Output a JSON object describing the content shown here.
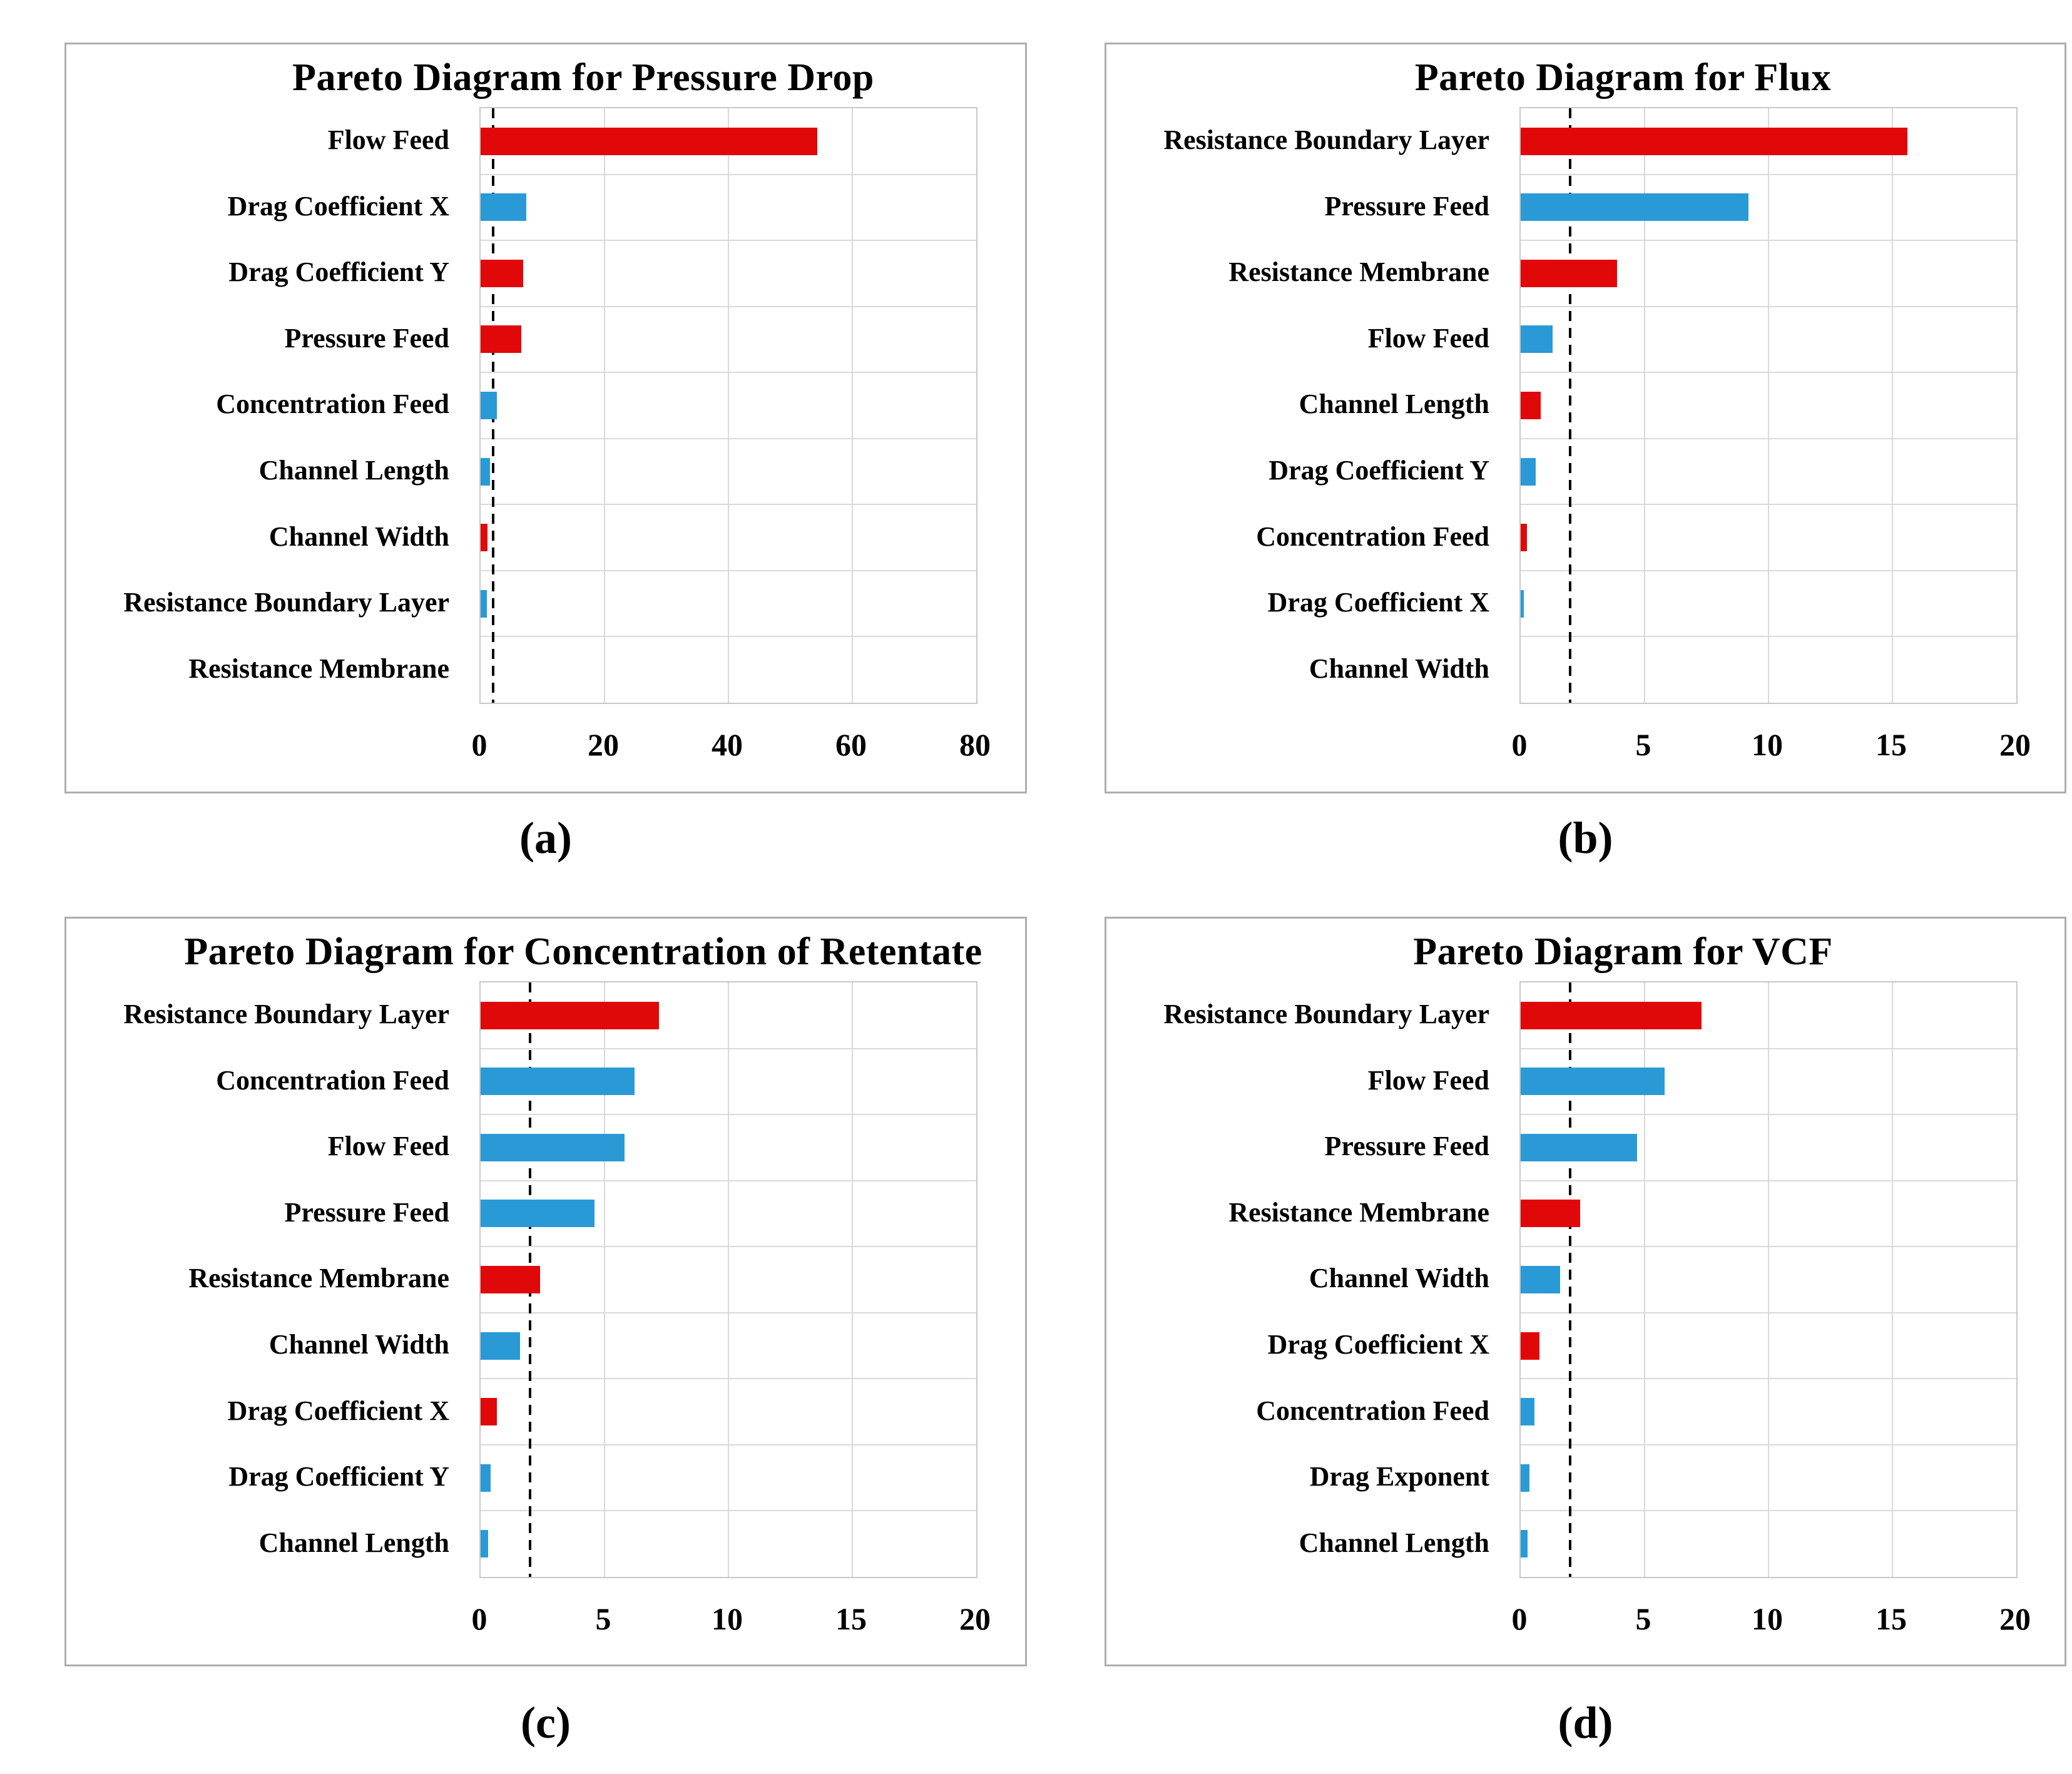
{
  "style": {
    "red": "#e00808",
    "blue": "#2a9ad6",
    "none": "transparent",
    "grid_color": "#d9d9d9",
    "plot_border_color": "#c8c8c8",
    "panel_border_color": "#aeaeae",
    "reference_line_color": "#000000",
    "text_color": "#000000",
    "background": "#ffffff"
  },
  "chart_data": [
    {
      "panel_id": "a",
      "panel_label": "(a)",
      "type": "bar",
      "orientation": "horizontal",
      "title": "Pareto Diagram for Pressure Drop",
      "categories": [
        "Flow Feed",
        "Drag Coefficient X",
        "Drag Coefficient Y",
        "Pressure Feed",
        "Concentration Feed",
        "Channel Length",
        "Channel Width",
        "Resistance Boundary Layer",
        "Resistance Membrane"
      ],
      "values": [
        54.3,
        7.4,
        6.9,
        6.6,
        2.6,
        1.5,
        1.1,
        1.0,
        0
      ],
      "bar_colors": [
        "red",
        "blue",
        "red",
        "red",
        "blue",
        "blue",
        "red",
        "blue",
        "none"
      ],
      "xlim": [
        0,
        80
      ],
      "xticks": [
        0,
        20,
        40,
        60,
        80
      ],
      "reference_line_x": 2,
      "grid": true,
      "legend": "none"
    },
    {
      "panel_id": "b",
      "panel_label": "(b)",
      "type": "bar",
      "orientation": "horizontal",
      "title": "Pareto Diagram for Flux",
      "categories": [
        "Resistance Boundary Layer",
        "Pressure Feed",
        "Resistance Membrane",
        "Flow Feed",
        "Channel Length",
        "Drag Coefficient Y",
        "Concentration Feed",
        "Drag Coefficient X",
        "Channel Width"
      ],
      "values": [
        15.6,
        9.2,
        3.9,
        1.3,
        0.8,
        0.6,
        0.25,
        0.12,
        0
      ],
      "bar_colors": [
        "red",
        "blue",
        "red",
        "blue",
        "red",
        "blue",
        "red",
        "blue",
        "none"
      ],
      "xlim": [
        0,
        20
      ],
      "xticks": [
        0,
        5,
        10,
        15,
        20
      ],
      "reference_line_x": 2,
      "grid": true,
      "legend": "none"
    },
    {
      "panel_id": "c",
      "panel_label": "(c)",
      "type": "bar",
      "orientation": "horizontal",
      "title": "Pareto Diagram for Concentration of Retentate",
      "categories": [
        "Resistance Boundary Layer",
        "Concentration Feed",
        "Flow Feed",
        "Pressure Feed",
        "Resistance Membrane",
        "Channel Width",
        "Drag Coefficient X",
        "Drag Coefficient Y",
        "Channel Length"
      ],
      "values": [
        7.2,
        6.2,
        5.8,
        4.6,
        2.4,
        1.6,
        0.65,
        0.4,
        0.3
      ],
      "bar_colors": [
        "red",
        "blue",
        "blue",
        "blue",
        "red",
        "blue",
        "red",
        "blue",
        "blue"
      ],
      "xlim": [
        0,
        20
      ],
      "xticks": [
        0,
        5,
        10,
        15,
        20
      ],
      "reference_line_x": 2,
      "grid": true,
      "legend": "none"
    },
    {
      "panel_id": "d",
      "panel_label": "(d)",
      "type": "bar",
      "orientation": "horizontal",
      "title": "Pareto Diagram for VCF",
      "categories": [
        "Resistance Boundary Layer",
        "Flow Feed",
        "Pressure Feed",
        "Resistance Membrane",
        "Channel Width",
        "Drag Coefficient X",
        "Concentration Feed",
        "Drag Exponent",
        "Channel Length"
      ],
      "values": [
        7.3,
        5.8,
        4.7,
        2.4,
        1.6,
        0.75,
        0.55,
        0.35,
        0.28
      ],
      "bar_colors": [
        "red",
        "blue",
        "blue",
        "red",
        "blue",
        "red",
        "blue",
        "blue",
        "blue"
      ],
      "xlim": [
        0,
        20
      ],
      "xticks": [
        0,
        5,
        10,
        15,
        20
      ],
      "reference_line_x": 2,
      "grid": true,
      "legend": "none"
    }
  ]
}
